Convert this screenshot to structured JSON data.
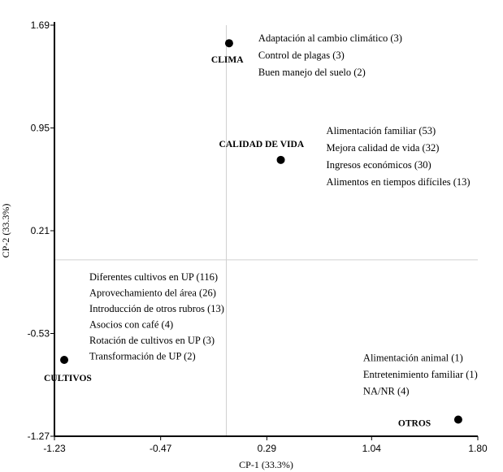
{
  "chart_data": {
    "type": "scatter",
    "title": "",
    "xlabel": "CP-1 (33.3%)",
    "ylabel": "CP-2 (33.3%)",
    "xlim": [
      -1.23,
      1.8
    ],
    "ylim": [
      -1.27,
      1.69
    ],
    "x_ticks": [
      -1.23,
      -0.47,
      0.29,
      1.04,
      1.8
    ],
    "x_tick_labels": [
      "-1.23",
      "-0.47",
      "0.29",
      "1.04",
      "1.80"
    ],
    "y_ticks": [
      1.69,
      0.95,
      0.21,
      -0.53,
      -1.27
    ],
    "y_tick_labels": [
      "1.69",
      "0.95",
      "0.21",
      "-0.53",
      "-1.27"
    ],
    "reference_lines": {
      "x": 0,
      "y": 0
    },
    "points": [
      {
        "name": "CLIMA",
        "x": 0.02,
        "y": 1.56,
        "items": [
          "Adaptación al cambio climático (3)",
          "Control de plagas (3)",
          "Buen manejo del suelo (2)"
        ]
      },
      {
        "name": "CALIDAD DE VIDA",
        "x": 0.39,
        "y": 0.72,
        "items": [
          "Alimentación familiar (53)",
          "Mejora calidad de vida (32)",
          "Ingresos económicos (30)",
          "Alimentos en tiempos difíciles (13)"
        ]
      },
      {
        "name": "CULTIVOS",
        "x": -1.16,
        "y": -0.72,
        "items": [
          "Diferentes cultivos en UP (116)",
          "Aprovechamiento del área (26)",
          "Introducción de otros rubros (13)",
          "Asocios con café (4)",
          "Rotación de cultivos en UP (3)",
          "Transformación de UP (2)"
        ]
      },
      {
        "name": "OTROS",
        "x": 1.66,
        "y": -1.15,
        "items": [
          "Alimentación animal (1)",
          "Entretenimiento familiar (1)",
          "NA/NR (4)"
        ]
      }
    ]
  }
}
